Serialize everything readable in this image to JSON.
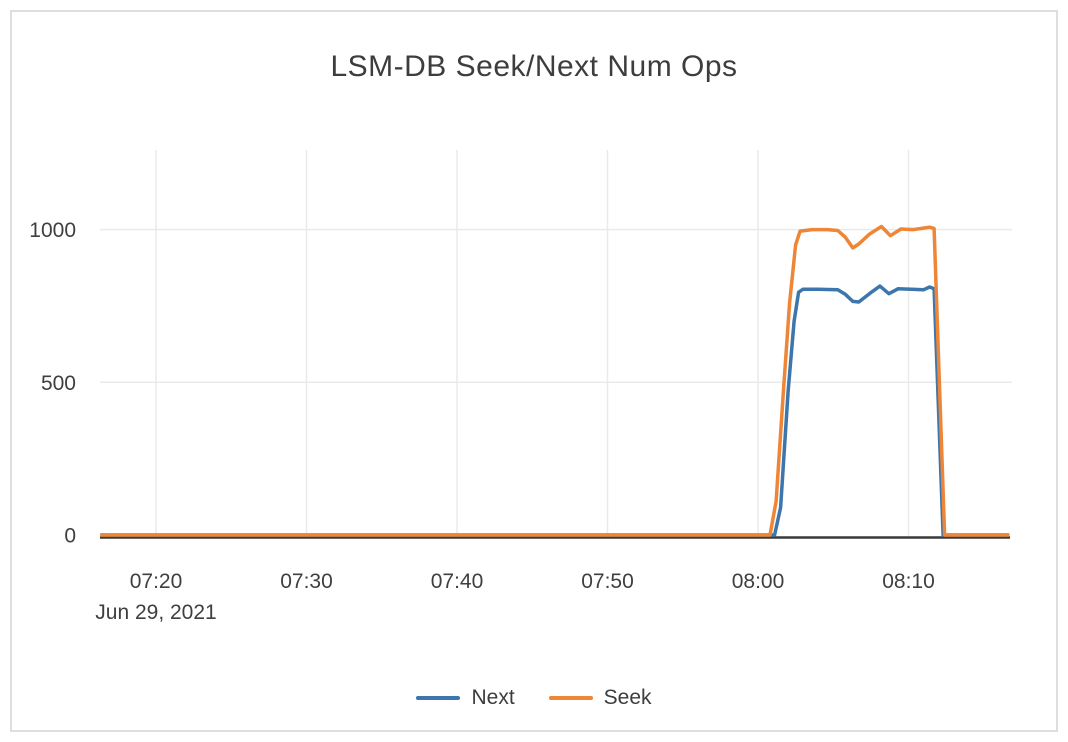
{
  "chart_data": {
    "type": "line",
    "title": "LSM-DB Seek/Next Num Ops",
    "xlabel": "",
    "ylabel": "",
    "x_axis": {
      "date_label": "Jun 29, 2021",
      "tick_labels": [
        "07:20",
        "07:30",
        "07:40",
        "07:50",
        "08:00",
        "08:10"
      ],
      "tick_minutes_after_0800": [
        -40,
        -30,
        -20,
        -10,
        0,
        10
      ],
      "range_minutes_after_0800": [
        -43.7,
        16.7
      ],
      "grid": true
    },
    "y_axis": {
      "tick_labels": [
        "0",
        "500",
        "1000"
      ],
      "tick_values": [
        0,
        500,
        1000
      ],
      "range": [
        0,
        1260
      ],
      "grid": true
    },
    "legend": {
      "position": "bottom-center"
    },
    "series": [
      {
        "name": "Next",
        "color": "#3c76ac",
        "points_minutes_after_0800_vs_ops": [
          [
            -43.7,
            0
          ],
          [
            -30,
            0
          ],
          [
            -20,
            0
          ],
          [
            -10,
            0
          ],
          [
            0,
            0
          ],
          [
            1.1,
            0
          ],
          [
            1.5,
            90
          ],
          [
            2.0,
            470
          ],
          [
            2.4,
            700
          ],
          [
            2.7,
            795
          ],
          [
            3.0,
            805
          ],
          [
            4.0,
            805
          ],
          [
            5.3,
            803
          ],
          [
            5.8,
            788
          ],
          [
            6.3,
            765
          ],
          [
            6.7,
            763
          ],
          [
            7.4,
            790
          ],
          [
            8.1,
            815
          ],
          [
            8.7,
            790
          ],
          [
            9.3,
            806
          ],
          [
            10.2,
            805
          ],
          [
            11.0,
            803
          ],
          [
            11.4,
            812
          ],
          [
            11.7,
            806
          ],
          [
            12.3,
            0
          ],
          [
            13.5,
            0
          ],
          [
            15,
            0
          ],
          [
            16.7,
            0
          ]
        ]
      },
      {
        "name": "Seek",
        "color": "#ef8536",
        "points_minutes_after_0800_vs_ops": [
          [
            -43.7,
            0
          ],
          [
            -30,
            0
          ],
          [
            -20,
            0
          ],
          [
            -10,
            0
          ],
          [
            0,
            0
          ],
          [
            0.8,
            0
          ],
          [
            1.2,
            110
          ],
          [
            1.7,
            480
          ],
          [
            2.1,
            760
          ],
          [
            2.5,
            950
          ],
          [
            2.8,
            995
          ],
          [
            3.6,
            1000
          ],
          [
            4.6,
            1000
          ],
          [
            5.3,
            997
          ],
          [
            5.8,
            975
          ],
          [
            6.3,
            940
          ],
          [
            6.7,
            953
          ],
          [
            7.4,
            985
          ],
          [
            8.2,
            1010
          ],
          [
            8.8,
            980
          ],
          [
            9.5,
            1002
          ],
          [
            10.3,
            1000
          ],
          [
            11.0,
            1005
          ],
          [
            11.4,
            1008
          ],
          [
            11.7,
            1004
          ],
          [
            12.4,
            0
          ],
          [
            13.5,
            0
          ],
          [
            15,
            0
          ],
          [
            16.7,
            0
          ]
        ]
      }
    ]
  },
  "colors": {
    "card_border": "#dedede",
    "grid_line": "#eaeaea",
    "zero_line": "#3a3a3a",
    "text": "#3d3d3d"
  }
}
